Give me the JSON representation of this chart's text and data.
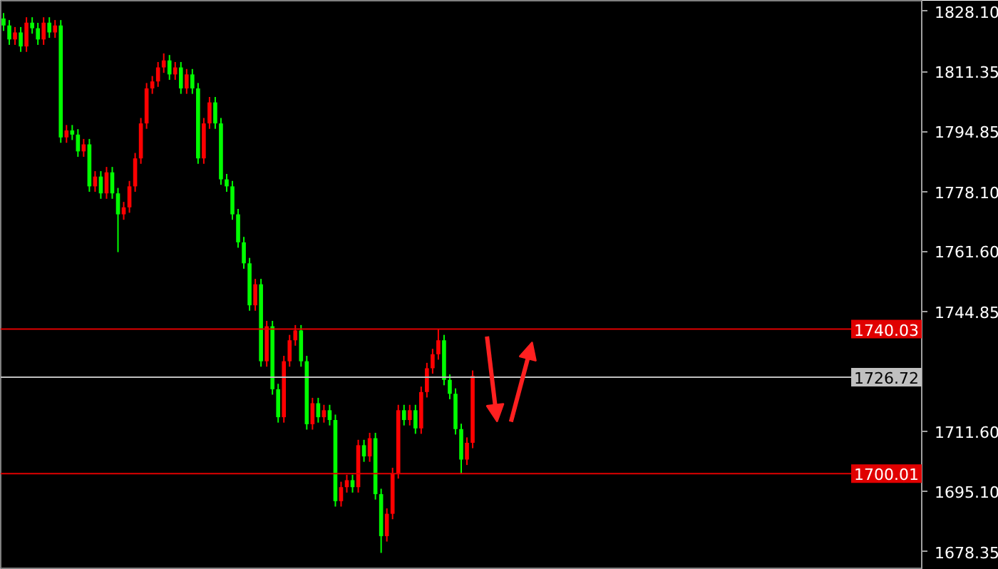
{
  "chart_data": {
    "type": "candlestick",
    "categories": [
      null,
      null,
      null,
      null,
      null,
      null,
      null,
      null,
      null,
      null,
      null,
      null,
      null,
      null,
      null,
      null,
      null,
      null,
      null,
      null,
      null,
      null,
      null,
      null,
      null,
      null,
      null,
      null,
      null,
      null,
      null,
      null,
      null,
      null,
      null,
      null,
      null,
      null,
      null,
      null,
      null,
      null,
      null,
      null,
      null,
      null,
      null,
      null,
      null,
      null,
      null,
      null,
      null,
      null,
      null,
      null,
      null,
      null,
      null,
      null,
      null,
      null,
      null,
      null,
      null,
      null,
      null,
      null,
      null,
      null,
      null,
      null,
      null,
      null,
      null,
      null,
      null,
      null,
      null,
      null,
      null,
      null,
      null,
      null,
      null,
      null,
      null,
      null,
      null,
      null,
      null,
      null,
      null,
      null,
      null,
      null,
      null,
      null,
      null,
      null,
      null,
      null,
      null,
      null,
      null,
      null,
      null,
      null,
      null,
      null,
      null,
      null,
      null,
      null,
      null,
      null,
      null,
      null,
      null,
      null,
      null,
      null,
      null,
      null,
      null,
      null,
      null,
      null,
      null,
      null,
      null,
      null,
      null,
      null,
      null,
      null,
      null,
      null,
      null,
      null,
      null,
      null,
      null,
      null,
      null,
      null,
      null,
      null,
      null,
      null,
      null,
      null,
      null,
      null,
      null,
      null,
      null,
      null,
      null,
      null,
      null
    ],
    "ohlc": [
      [
        1826.08,
        1827.58,
        1822.64,
        1824.14
      ],
      [
        1824.14,
        1825.64,
        1818.77,
        1820.27
      ],
      [
        1820.27,
        1823.71,
        1818.77,
        1822.21
      ],
      [
        1822.21,
        1823.71,
        1816.83,
        1818.33
      ],
      [
        1818.33,
        1826.42,
        1816.83,
        1824.92
      ],
      [
        1824.92,
        1826.42,
        1821.87,
        1823.37
      ],
      [
        1823.37,
        1824.87,
        1818.77,
        1820.27
      ],
      [
        1820.27,
        1826.42,
        1818.77,
        1824.92
      ],
      [
        1824.92,
        1826.42,
        1820.71,
        1822.21
      ],
      [
        1822.21,
        1825.64,
        1820.71,
        1824.14
      ],
      [
        1824.14,
        1825.64,
        1791.64,
        1793.14
      ],
      [
        1793.14,
        1796.57,
        1791.64,
        1795.07
      ],
      [
        1795.07,
        1796.57,
        1792.41,
        1793.91
      ],
      [
        1793.91,
        1795.41,
        1787.76,
        1789.26
      ],
      [
        1789.26,
        1792.7,
        1787.76,
        1791.2
      ],
      [
        1791.2,
        1792.7,
        1778.07,
        1779.57
      ],
      [
        1779.57,
        1783.78,
        1778.07,
        1782.28
      ],
      [
        1782.28,
        1783.78,
        1776.13,
        1777.63
      ],
      [
        1777.63,
        1784.95,
        1776.13,
        1783.45
      ],
      [
        1783.45,
        1784.95,
        1776.13,
        1777.63
      ],
      [
        1777.63,
        1779.13,
        1761.35,
        1771.82
      ],
      [
        1771.82,
        1775.26,
        1770.32,
        1773.76
      ],
      [
        1773.76,
        1781.07,
        1772.26,
        1779.57
      ],
      [
        1779.57,
        1788.82,
        1778.07,
        1787.32
      ],
      [
        1787.32,
        1798.51,
        1785.82,
        1797.01
      ],
      [
        1797.01,
        1808.2,
        1795.51,
        1806.7
      ],
      [
        1806.7,
        1810.14,
        1805.2,
        1808.64
      ],
      [
        1808.64,
        1814.02,
        1807.14,
        1812.52
      ],
      [
        1812.52,
        1816.4,
        1811.02,
        1814.46
      ],
      [
        1814.46,
        1815.96,
        1809.08,
        1810.58
      ],
      [
        1810.58,
        1814.02,
        1809.08,
        1812.52
      ],
      [
        1812.52,
        1814.02,
        1805.2,
        1806.7
      ],
      [
        1806.7,
        1812.08,
        1805.2,
        1810.58
      ],
      [
        1810.58,
        1812.08,
        1805.2,
        1806.7
      ],
      [
        1806.7,
        1808.2,
        1785.82,
        1787.32
      ],
      [
        1787.32,
        1798.51,
        1785.82,
        1797.01
      ],
      [
        1797.01,
        1804.33,
        1795.51,
        1802.83
      ],
      [
        1802.83,
        1804.33,
        1795.51,
        1797.01
      ],
      [
        1797.01,
        1798.51,
        1780.01,
        1781.51
      ],
      [
        1781.51,
        1783.01,
        1778.07,
        1779.57
      ],
      [
        1779.57,
        1781.07,
        1770.32,
        1771.82
      ],
      [
        1771.82,
        1773.32,
        1762.57,
        1764.07
      ],
      [
        1764.07,
        1765.57,
        1756.75,
        1758.25
      ],
      [
        1758.25,
        1759.75,
        1745.12,
        1746.62
      ],
      [
        1746.62,
        1753.94,
        1745.12,
        1752.44
      ],
      [
        1752.44,
        1753.94,
        1729.62,
        1731.12
      ],
      [
        1731.12,
        1742.31,
        1729.62,
        1740.81
      ],
      [
        1740.81,
        1742.31,
        1721.87,
        1723.37
      ],
      [
        1723.37,
        1724.87,
        1714.12,
        1715.62
      ],
      [
        1715.62,
        1732.62,
        1714.12,
        1731.12
      ],
      [
        1731.12,
        1738.43,
        1729.62,
        1736.93
      ],
      [
        1736.93,
        1741.15,
        1735.43,
        1739.65
      ],
      [
        1739.65,
        1741.15,
        1729.62,
        1731.12
      ],
      [
        1731.12,
        1732.62,
        1712.18,
        1713.68
      ],
      [
        1713.68,
        1720.99,
        1712.18,
        1719.49
      ],
      [
        1719.49,
        1720.99,
        1714.12,
        1715.62
      ],
      [
        1715.62,
        1719.05,
        1714.12,
        1717.55
      ],
      [
        1717.55,
        1719.05,
        1713.34,
        1714.84
      ],
      [
        1714.84,
        1716.34,
        1690.86,
        1692.36
      ],
      [
        1692.36,
        1697.74,
        1690.86,
        1696.24
      ],
      [
        1696.24,
        1699.67,
        1694.74,
        1698.17
      ],
      [
        1698.17,
        1699.67,
        1694.74,
        1696.24
      ],
      [
        1696.24,
        1709.36,
        1694.74,
        1707.86
      ],
      [
        1707.86,
        1709.36,
        1703.26,
        1704.76
      ],
      [
        1704.76,
        1711.3,
        1703.26,
        1709.8
      ],
      [
        1709.8,
        1711.3,
        1692.8,
        1694.3
      ],
      [
        1694.3,
        1695.8,
        1678.03,
        1682.67
      ],
      [
        1682.67,
        1690.36,
        1681.17,
        1688.86
      ],
      [
        1688.86,
        1701.61,
        1687.36,
        1700.11
      ],
      [
        1700.11,
        1719.05,
        1698.61,
        1717.55
      ],
      [
        1717.55,
        1719.05,
        1713.34,
        1714.84
      ],
      [
        1714.84,
        1719.05,
        1713.34,
        1717.55
      ],
      [
        1717.55,
        1719.05,
        1711.02,
        1712.52
      ],
      [
        1712.52,
        1724.09,
        1711.02,
        1722.59
      ],
      [
        1722.59,
        1730.68,
        1721.09,
        1729.18
      ],
      [
        1729.18,
        1734.56,
        1727.68,
        1733.06
      ],
      [
        1733.06,
        1740.0,
        1731.56,
        1736.93
      ],
      [
        1736.93,
        1738.43,
        1724.47,
        1725.97
      ],
      [
        1725.97,
        1727.47,
        1720.6,
        1722.1
      ],
      [
        1722.1,
        1723.6,
        1710.83,
        1712.33
      ],
      [
        1712.33,
        1713.83,
        1700.0,
        1703.88
      ],
      [
        1703.88,
        1710.03,
        1702.38,
        1708.53
      ],
      [
        1708.53,
        1728.57,
        1707.03,
        1727.07
      ],
      null,
      null,
      null,
      null,
      null,
      null,
      null,
      null,
      null,
      null,
      null,
      null,
      null,
      null,
      null,
      null,
      null,
      null,
      null,
      null,
      null,
      null,
      null,
      null,
      null,
      null,
      null,
      null,
      null,
      null,
      null,
      null,
      null,
      null,
      null,
      null,
      null,
      null,
      null,
      null,
      null,
      null,
      null,
      null,
      null,
      null,
      null,
      null,
      null,
      null,
      null,
      null,
      null,
      null,
      null,
      null,
      null,
      null,
      null,
      null,
      null,
      null,
      null,
      null,
      null,
      null,
      null,
      null,
      null,
      null,
      null,
      null,
      null,
      null,
      null,
      null,
      null,
      null
    ],
    "colors": [
      "#00ff00",
      "#00ff00",
      "#ff0000",
      "#00ff00",
      "#ff0000",
      "#00ff00",
      "#00ff00",
      "#ff0000",
      "#00ff00",
      "#ff0000",
      "#00ff00",
      "#ff0000",
      "#00ff00",
      "#00ff00",
      "#ff0000",
      "#00ff00",
      "#ff0000",
      "#00ff00",
      "#ff0000",
      "#00ff00",
      "#00ff00",
      "#ff0000",
      "#ff0000",
      "#ff0000",
      "#ff0000",
      "#ff0000",
      "#ff0000",
      "#ff0000",
      "#ff0000",
      "#00ff00",
      "#ff0000",
      "#00ff00",
      "#ff0000",
      "#00ff00",
      "#00ff00",
      "#ff0000",
      "#ff0000",
      "#00ff00",
      "#00ff00",
      "#00ff00",
      "#00ff00",
      "#00ff00",
      "#00ff00",
      "#00ff00",
      "#ff0000",
      "#00ff00",
      "#ff0000",
      "#00ff00",
      "#00ff00",
      "#ff0000",
      "#ff0000",
      "#ff0000",
      "#00ff00",
      "#00ff00",
      "#ff0000",
      "#00ff00",
      "#ff0000",
      "#00ff00",
      "#00ff00",
      "#ff0000",
      "#ff0000",
      "#00ff00",
      "#ff0000",
      "#00ff00",
      "#ff0000",
      "#00ff00",
      "#00ff00",
      "#ff0000",
      "#ff0000",
      "#ff0000",
      "#00ff00",
      "#ff0000",
      "#00ff00",
      "#ff0000",
      "#ff0000",
      "#ff0000",
      "#ff0000",
      "#00ff00",
      "#00ff00",
      "#00ff00",
      "#00ff00",
      "#ff0000",
      "#ff0000",
      null,
      null,
      null,
      null,
      null,
      null,
      null,
      null,
      null,
      null,
      null,
      null,
      null,
      null,
      null,
      null,
      null,
      null,
      null,
      null,
      null,
      null,
      null,
      null,
      null,
      null,
      null,
      null,
      null,
      null,
      null,
      null,
      null,
      null,
      null,
      null,
      null,
      null,
      null,
      null,
      null,
      null,
      null,
      null,
      null,
      null,
      null,
      null,
      null,
      null,
      null,
      null,
      null,
      null,
      null,
      null,
      null,
      null,
      null,
      null,
      null,
      null,
      null,
      null,
      null,
      null,
      null,
      null,
      null,
      null,
      null,
      null,
      null,
      null,
      null,
      null,
      null,
      null
    ],
    "ylim": [
      1673.37,
      1831.0
    ],
    "yticks": [
      {
        "value": 1828.1,
        "label": "1828.10"
      },
      1811.35,
      1794.85,
      {
        "value": 1778.1,
        "label": "1778.10"
      },
      {
        "value": 1761.6,
        "label": "1761.60"
      },
      1744.85,
      {
        "value": 1711.6,
        "label": "1711.60"
      },
      {
        "value": 1695.1,
        "label": "1695.10"
      },
      1678.35
    ],
    "ref_lines": [
      {
        "axis": "y",
        "value": 1740.03,
        "label": "1740.03",
        "color": "#e00000"
      },
      {
        "axis": "y",
        "value": 1726.72,
        "label": "1726.72",
        "color": "#c0c0c0"
      },
      {
        "axis": "y",
        "value": 1700.01,
        "label": "1700.01",
        "color": "#e00000"
      }
    ],
    "tick_labels": "y",
    "grid": false
  }
}
